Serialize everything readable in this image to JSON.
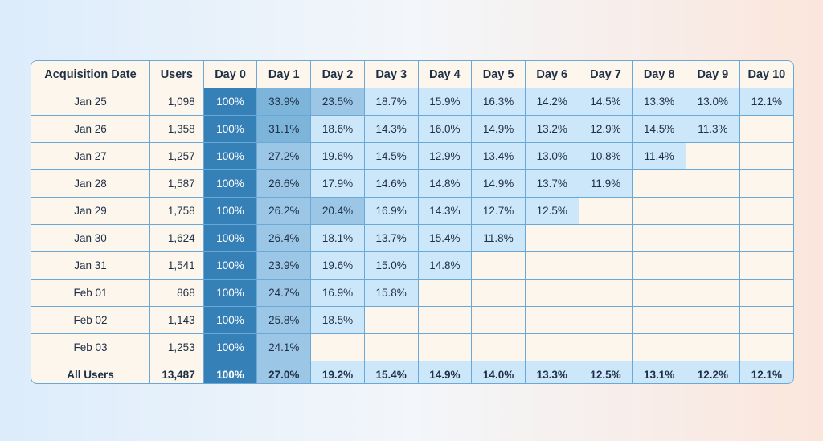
{
  "chart_data": {
    "type": "table",
    "columns": [
      "Acquisition Date",
      "Users",
      "Day 0",
      "Day 1",
      "Day 2",
      "Day 3",
      "Day 4",
      "Day 5",
      "Day 6",
      "Day 7",
      "Day 8",
      "Day 9",
      "Day 10"
    ],
    "rows": [
      {
        "date": "Jan 25",
        "users": "1,098",
        "values": [
          "100%",
          "33.9%",
          "23.5%",
          "18.7%",
          "15.9%",
          "16.3%",
          "14.2%",
          "14.5%",
          "13.3%",
          "13.0%",
          "12.1%"
        ]
      },
      {
        "date": "Jan 26",
        "users": "1,358",
        "values": [
          "100%",
          "31.1%",
          "18.6%",
          "14.3%",
          "16.0%",
          "14.9%",
          "13.2%",
          "12.9%",
          "14.5%",
          "11.3%"
        ]
      },
      {
        "date": "Jan 27",
        "users": "1,257",
        "values": [
          "100%",
          "27.2%",
          "19.6%",
          "14.5%",
          "12.9%",
          "13.4%",
          "13.0%",
          "10.8%",
          "11.4%"
        ]
      },
      {
        "date": "Jan 28",
        "users": "1,587",
        "values": [
          "100%",
          "26.6%",
          "17.9%",
          "14.6%",
          "14.8%",
          "14.9%",
          "13.7%",
          "11.9%"
        ]
      },
      {
        "date": "Jan 29",
        "users": "1,758",
        "values": [
          "100%",
          "26.2%",
          "20.4%",
          "16.9%",
          "14.3%",
          "12.7%",
          "12.5%"
        ]
      },
      {
        "date": "Jan 30",
        "users": "1,624",
        "values": [
          "100%",
          "26.4%",
          "18.1%",
          "13.7%",
          "15.4%",
          "11.8%"
        ]
      },
      {
        "date": "Jan 31",
        "users": "1,541",
        "values": [
          "100%",
          "23.9%",
          "19.6%",
          "15.0%",
          "14.8%"
        ]
      },
      {
        "date": "Feb 01",
        "users": "868",
        "values": [
          "100%",
          "24.7%",
          "16.9%",
          "15.8%"
        ]
      },
      {
        "date": "Feb 02",
        "users": "1,143",
        "values": [
          "100%",
          "25.8%",
          "18.5%"
        ]
      },
      {
        "date": "Feb 03",
        "users": "1,253",
        "values": [
          "100%",
          "24.1%"
        ]
      }
    ],
    "total": {
      "date": "All Users",
      "users": "13,487",
      "values": [
        "100%",
        "27.0%",
        "19.2%",
        "15.4%",
        "14.9%",
        "14.0%",
        "13.3%",
        "12.5%",
        "13.1%",
        "12.2%",
        "12.1%"
      ]
    },
    "colors": {
      "day0": "#3680b8",
      "high": "#7cb4da",
      "mid": "#9cc6e6",
      "low": "#cce6fa",
      "empty": "#fdf6ec",
      "border": "#6aa8d8"
    }
  }
}
